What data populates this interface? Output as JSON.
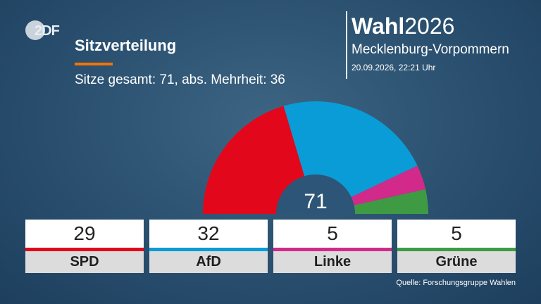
{
  "header": {
    "logo_text": "2DF",
    "title": "Sitzverteilung",
    "subtitle": "Sitze gesamt: 71, abs. Mehrheit: 36",
    "brand_bold": "Wahl",
    "brand_year": "2026",
    "region": "Mecklenburg-Vorpommern",
    "timestamp": "20.09.2026, 22:21 Uhr"
  },
  "chart_data": {
    "type": "pie",
    "variant": "parliament-half-donut",
    "total_label": "71",
    "categories": [
      "SPD",
      "AfD",
      "Linke",
      "Grüne"
    ],
    "values": [
      29,
      32,
      5,
      5
    ],
    "colors": [
      "#e3071b",
      "#0a9cd6",
      "#d22a8a",
      "#3f9b43"
    ],
    "value_labels": [
      "29",
      "32",
      "5",
      "5"
    ]
  },
  "source": "Quelle: Forschungsgruppe Wahlen"
}
